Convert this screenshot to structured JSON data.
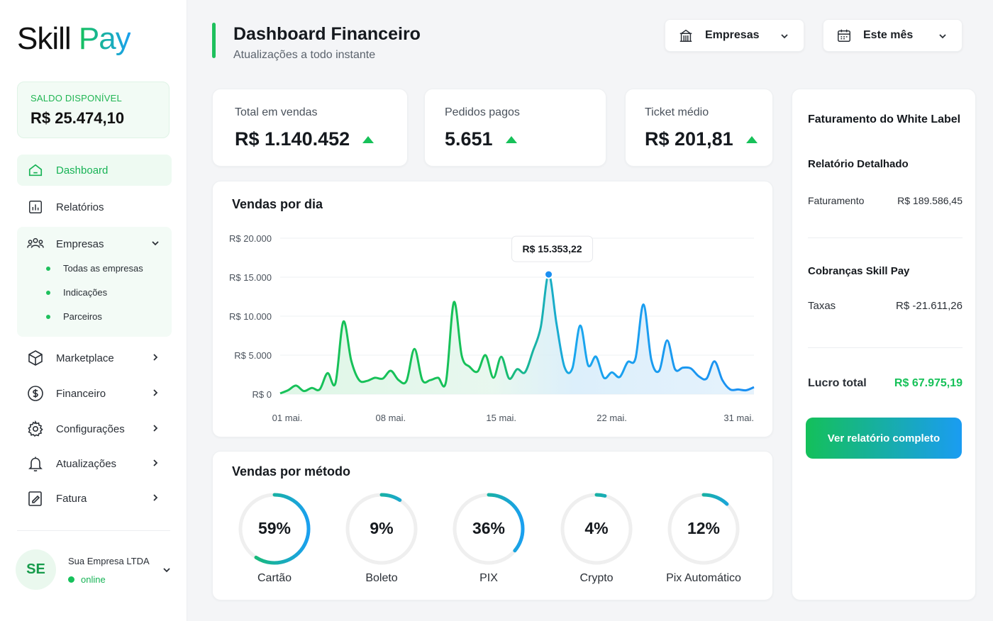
{
  "brand": {
    "part1": "Skill",
    "part2": "Pay"
  },
  "balance": {
    "label": "SALDO DISPONÍVEL",
    "value": "R$ 25.474,10"
  },
  "nav": {
    "dashboard": "Dashboard",
    "relatorios": "Relatórios",
    "empresas": "Empresas",
    "empresas_sub": [
      "Todas as empresas",
      "Indicações",
      "Parceiros"
    ],
    "marketplace": "Marketplace",
    "financeiro": "Financeiro",
    "configuracoes": "Configurações",
    "atualizacoes": "Atualizações",
    "fatura": "Fatura"
  },
  "user": {
    "initials": "SE",
    "name": "Sua Empresa LTDA",
    "status": "online"
  },
  "header": {
    "title": "Dashboard Financeiro",
    "subtitle": "Atualizações a todo instante",
    "company_select": "Empresas",
    "period_select": "Este mês"
  },
  "kpis": [
    {
      "label": "Total em vendas",
      "value": "R$ 1.140.452"
    },
    {
      "label": "Pedidos pagos",
      "value": "5.651"
    },
    {
      "label": "Ticket médio",
      "value": "R$ 201,81"
    }
  ],
  "chart_data": {
    "type": "area",
    "title": "Vendas por dia",
    "y_ticks": [
      "R$ 20.000",
      "R$ 15.000",
      "R$ 10.000",
      "R$ 5.000",
      "R$ 0"
    ],
    "x_ticks": [
      "01 mai.",
      "08 mai.",
      "15 mai.",
      "22 mai.",
      "31 mai."
    ],
    "ylim": [
      0,
      20000
    ],
    "x": [
      1,
      1.5,
      2,
      2.5,
      3,
      3.5,
      4,
      4.5,
      5,
      5.5,
      6,
      6.5,
      7,
      7.5,
      8,
      8.5,
      9,
      9.5,
      10,
      10.5,
      11,
      11.5,
      12,
      12.5,
      13,
      13.5,
      14,
      14.5,
      15,
      15.5,
      16,
      16.5,
      17,
      17.5,
      18,
      18.5,
      19,
      19.5,
      20,
      20.5,
      21,
      21.5,
      22,
      22.5,
      23,
      23.5,
      24,
      24.5,
      25,
      25.5,
      26,
      26.5,
      27,
      27.5,
      28,
      28.5,
      29,
      29.5,
      30,
      30.5,
      31
    ],
    "values": [
      100,
      500,
      1100,
      400,
      800,
      600,
      2700,
      1400,
      9300,
      4300,
      1800,
      1700,
      2100,
      2000,
      3000,
      1800,
      1700,
      5800,
      1800,
      1800,
      2100,
      1600,
      11800,
      4900,
      3500,
      2900,
      5000,
      2100,
      4800,
      2000,
      3200,
      2800,
      5500,
      8600,
      15353.22,
      9000,
      3500,
      3300,
      8800,
      3700,
      4800,
      2100,
      2800,
      2200,
      4100,
      4600,
      11500,
      4400,
      3000,
      6900,
      3200,
      3400,
      3300,
      2300,
      2000,
      4200,
      1800,
      600,
      600,
      500,
      900
    ],
    "tooltip": {
      "x": 18,
      "label": "R$ 15.353,22"
    },
    "grid": true
  },
  "methods": {
    "title": "Vendas por método",
    "items": [
      {
        "name": "Cartão",
        "percent": 59,
        "label": "59%"
      },
      {
        "name": "Boleto",
        "percent": 9,
        "label": "9%"
      },
      {
        "name": "PIX",
        "percent": 36,
        "label": "36%"
      },
      {
        "name": "Crypto",
        "percent": 4,
        "label": "4%"
      },
      {
        "name": "Pix Automático",
        "percent": 12,
        "label": "12%"
      }
    ]
  },
  "white_label": {
    "title": "Faturamento do White Label",
    "report_title": "Relatório Detalhado",
    "faturamento_label": "Faturamento",
    "faturamento_value": "R$ 189.586,45",
    "cobrancas_title": "Cobranças Skill Pay",
    "taxas_label": "Taxas",
    "taxas_value": "R$ -21.611,26",
    "lucro_label": "Lucro total",
    "lucro_value": "R$ 67.975,19",
    "button": "Ver relatório completo"
  },
  "colors": {
    "green": "#17c159",
    "blue": "#1a9cf2",
    "text": "#15191e"
  }
}
